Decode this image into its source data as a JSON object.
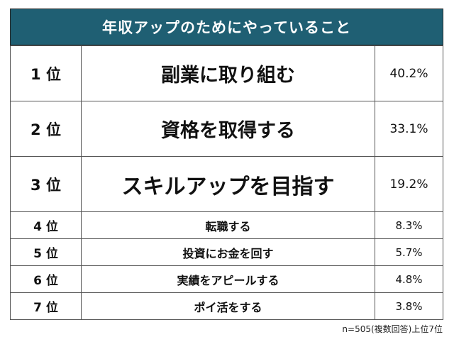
{
  "title": "年収アップのためにやっていること",
  "rows": [
    {
      "rank": "1 位",
      "item": "副業に取り組む",
      "percent": "40.2%"
    },
    {
      "rank": "2 位",
      "item": "資格を取得する",
      "percent": "33.1%"
    },
    {
      "rank": "3 位",
      "item": "スキルアップを目指す",
      "percent": "19.2%"
    },
    {
      "rank": "4 位",
      "item": "転職する",
      "percent": "8.3%"
    },
    {
      "rank": "5 位",
      "item": "投資にお金を回す",
      "percent": "5.7%"
    },
    {
      "rank": "6 位",
      "item": "実績をアピールする",
      "percent": "4.8%"
    },
    {
      "rank": "7 位",
      "item": "ポイ活をする",
      "percent": "3.8%"
    }
  ],
  "note": "n=505(複数回答)上位7位",
  "colors": {
    "header_bg": "#1f5f73",
    "header_text": "#ffffff",
    "border": "#555555"
  }
}
